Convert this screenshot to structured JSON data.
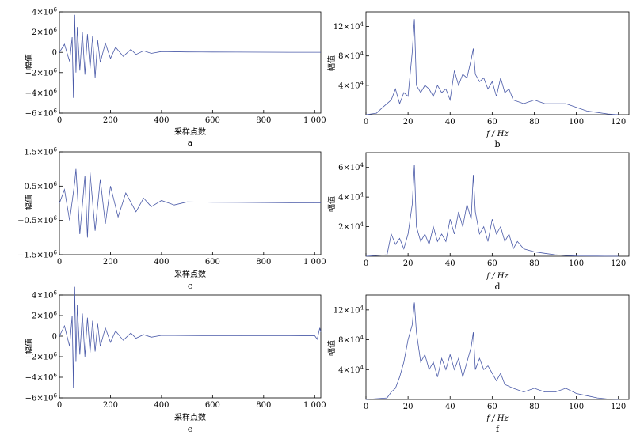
{
  "chart_data": [
    {
      "id": "a",
      "type": "line",
      "panel_label": "a",
      "xlabel": "采样点数",
      "ylabel": "幅值",
      "xlim": [
        0,
        1024
      ],
      "ylim": [
        -6000000,
        4000000
      ],
      "xticks": [
        "0",
        "200",
        "400",
        "600",
        "800",
        "1 000"
      ],
      "yticks": [
        {
          "mant": "−6×10",
          "exp": "6"
        },
        {
          "mant": "−4×10",
          "exp": "6"
        },
        {
          "mant": "−2×10",
          "exp": "6"
        },
        {
          "mant": "0",
          "exp": ""
        },
        {
          "mant": "2×10",
          "exp": "6"
        },
        {
          "mant": "4×10",
          "exp": "6"
        }
      ],
      "x": [
        0,
        20,
        40,
        50,
        55,
        60,
        65,
        70,
        80,
        90,
        100,
        110,
        120,
        130,
        140,
        150,
        160,
        180,
        200,
        220,
        250,
        280,
        300,
        330,
        360,
        400,
        500,
        600,
        700,
        800,
        900,
        1000,
        1024
      ],
      "series": [
        {
          "values": [
            0,
            800000,
            -900000,
            1500000,
            -4500000,
            3700000,
            -2000000,
            2500000,
            -1800000,
            2000000,
            -2200000,
            1800000,
            -1600000,
            1600000,
            -2500000,
            1200000,
            -1000000,
            900000,
            -600000,
            500000,
            -400000,
            300000,
            -200000,
            150000,
            -100000,
            80000,
            40000,
            30000,
            20000,
            15000,
            10000,
            10000,
            5000
          ]
        }
      ]
    },
    {
      "id": "b",
      "type": "line",
      "panel_label": "b",
      "xlabel": "f / Hz",
      "ylabel": "幅值",
      "xlim": [
        0,
        125
      ],
      "ylim": [
        0,
        140000
      ],
      "xticks": [
        "0",
        "20",
        "40",
        "60",
        "80",
        "100",
        "120"
      ],
      "yticks": [
        {
          "mant": "4×10",
          "exp": "4"
        },
        {
          "mant": "8×10",
          "exp": "4"
        },
        {
          "mant": "12×10",
          "exp": "4"
        }
      ],
      "x": [
        0,
        5,
        8,
        10,
        12,
        14,
        16,
        18,
        20,
        22,
        23,
        24,
        26,
        28,
        30,
        32,
        34,
        36,
        38,
        40,
        42,
        44,
        46,
        48,
        50,
        51,
        52,
        54,
        56,
        58,
        60,
        62,
        64,
        66,
        68,
        70,
        75,
        80,
        85,
        90,
        95,
        100,
        105,
        110,
        115,
        120
      ],
      "series": [
        {
          "values": [
            0,
            2000,
            10000,
            15000,
            20000,
            35000,
            15000,
            30000,
            25000,
            85000,
            130000,
            40000,
            30000,
            40000,
            35000,
            25000,
            40000,
            30000,
            35000,
            20000,
            60000,
            40000,
            55000,
            50000,
            75000,
            90000,
            55000,
            45000,
            50000,
            35000,
            45000,
            25000,
            50000,
            30000,
            35000,
            20000,
            15000,
            20000,
            15000,
            15000,
            15000,
            10000,
            5000,
            3000,
            1000,
            0
          ]
        }
      ]
    },
    {
      "id": "c",
      "type": "line",
      "panel_label": "c",
      "xlabel": "采样点数",
      "ylabel": "幅值",
      "xlim": [
        0,
        1024
      ],
      "ylim": [
        -1500000,
        1500000
      ],
      "xticks": [
        "0",
        "200",
        "400",
        "600",
        "800",
        "1 000"
      ],
      "yticks": [
        {
          "mant": "−1.5×10",
          "exp": "6"
        },
        {
          "mant": "−0.5×10",
          "exp": "6"
        },
        {
          "mant": "0.5×10",
          "exp": "6"
        },
        {
          "mant": "1.5×10",
          "exp": "6"
        }
      ],
      "x": [
        0,
        20,
        40,
        60,
        65,
        80,
        100,
        110,
        120,
        140,
        160,
        180,
        200,
        230,
        260,
        300,
        330,
        360,
        400,
        450,
        500,
        600,
        700,
        800,
        900,
        1000,
        1024
      ],
      "series": [
        {
          "values": [
            0,
            400000,
            -500000,
            600000,
            1000000,
            -900000,
            800000,
            -1000000,
            900000,
            -800000,
            700000,
            -600000,
            500000,
            -400000,
            300000,
            -250000,
            150000,
            -100000,
            80000,
            -50000,
            40000,
            30000,
            25000,
            20000,
            15000,
            10000,
            10000
          ]
        }
      ]
    },
    {
      "id": "d",
      "type": "line",
      "panel_label": "d",
      "xlabel": "f / Hz",
      "ylabel": "幅值",
      "xlim": [
        0,
        125
      ],
      "ylim": [
        0,
        70000
      ],
      "xticks": [
        "0",
        "20",
        "40",
        "60",
        "80",
        "100",
        "120"
      ],
      "yticks": [
        {
          "mant": "2×10",
          "exp": "4"
        },
        {
          "mant": "4×10",
          "exp": "4"
        },
        {
          "mant": "6×10",
          "exp": "4"
        }
      ],
      "x": [
        0,
        10,
        12,
        14,
        16,
        18,
        20,
        22,
        23,
        24,
        26,
        28,
        30,
        32,
        34,
        36,
        38,
        40,
        42,
        44,
        46,
        48,
        50,
        51,
        52,
        54,
        56,
        58,
        60,
        62,
        64,
        66,
        68,
        70,
        72,
        75,
        80,
        85,
        90,
        95,
        100,
        110,
        120
      ],
      "series": [
        {
          "values": [
            0,
            1000,
            15000,
            8000,
            12000,
            5000,
            15000,
            35000,
            62000,
            20000,
            10000,
            15000,
            8000,
            20000,
            10000,
            15000,
            10000,
            25000,
            15000,
            30000,
            20000,
            35000,
            25000,
            55000,
            30000,
            15000,
            20000,
            10000,
            25000,
            15000,
            20000,
            10000,
            15000,
            5000,
            10000,
            5000,
            3000,
            2000,
            1000,
            500,
            200,
            100,
            0
          ]
        }
      ]
    },
    {
      "id": "e",
      "type": "line",
      "panel_label": "e",
      "xlabel": "采样点数",
      "ylabel": "幅值",
      "xlim": [
        0,
        1024
      ],
      "ylim": [
        -6000000,
        4000000
      ],
      "xticks": [
        "0",
        "200",
        "400",
        "600",
        "800",
        "1 000"
      ],
      "yticks": [
        {
          "mant": "−6×10",
          "exp": "6"
        },
        {
          "mant": "−4×10",
          "exp": "6"
        },
        {
          "mant": "−2×10",
          "exp": "6"
        },
        {
          "mant": "0",
          "exp": ""
        },
        {
          "mant": "2×10",
          "exp": "6"
        },
        {
          "mant": "4×10",
          "exp": "6"
        }
      ],
      "x": [
        0,
        20,
        40,
        50,
        55,
        60,
        65,
        70,
        80,
        90,
        100,
        110,
        120,
        130,
        140,
        150,
        160,
        180,
        200,
        220,
        250,
        280,
        300,
        330,
        360,
        400,
        500,
        600,
        700,
        800,
        900,
        1000,
        1010,
        1020,
        1024
      ],
      "series": [
        {
          "values": [
            0,
            1000000,
            -1000000,
            2000000,
            -5000000,
            4800000,
            -2500000,
            3000000,
            -1800000,
            2200000,
            -2000000,
            1800000,
            -1600000,
            1500000,
            -1500000,
            1200000,
            -1000000,
            800000,
            -600000,
            500000,
            -400000,
            300000,
            -200000,
            150000,
            -100000,
            80000,
            60000,
            50000,
            45000,
            40000,
            40000,
            50000,
            -300000,
            800000,
            400000
          ]
        }
      ]
    },
    {
      "id": "f",
      "type": "line",
      "panel_label": "f",
      "xlabel": "f / Hz",
      "ylabel": "幅值",
      "xlim": [
        0,
        125
      ],
      "ylim": [
        0,
        140000
      ],
      "xticks": [
        "0",
        "20",
        "40",
        "60",
        "80",
        "100",
        "120"
      ],
      "yticks": [
        {
          "mant": "4×10",
          "exp": "4"
        },
        {
          "mant": "8×10",
          "exp": "4"
        },
        {
          "mant": "12×10",
          "exp": "4"
        }
      ],
      "x": [
        0,
        10,
        12,
        14,
        16,
        18,
        20,
        22,
        23,
        24,
        26,
        28,
        30,
        32,
        34,
        36,
        38,
        40,
        42,
        44,
        46,
        48,
        50,
        51,
        52,
        54,
        56,
        58,
        60,
        62,
        64,
        66,
        70,
        75,
        80,
        85,
        90,
        95,
        100,
        105,
        110,
        115,
        120
      ],
      "series": [
        {
          "values": [
            0,
            2000,
            10000,
            15000,
            30000,
            50000,
            80000,
            100000,
            130000,
            90000,
            50000,
            60000,
            40000,
            50000,
            30000,
            55000,
            40000,
            60000,
            40000,
            55000,
            30000,
            50000,
            70000,
            90000,
            40000,
            55000,
            40000,
            45000,
            35000,
            25000,
            35000,
            20000,
            15000,
            10000,
            15000,
            10000,
            10000,
            15000,
            8000,
            5000,
            2000,
            500,
            0
          ]
        }
      ]
    }
  ]
}
